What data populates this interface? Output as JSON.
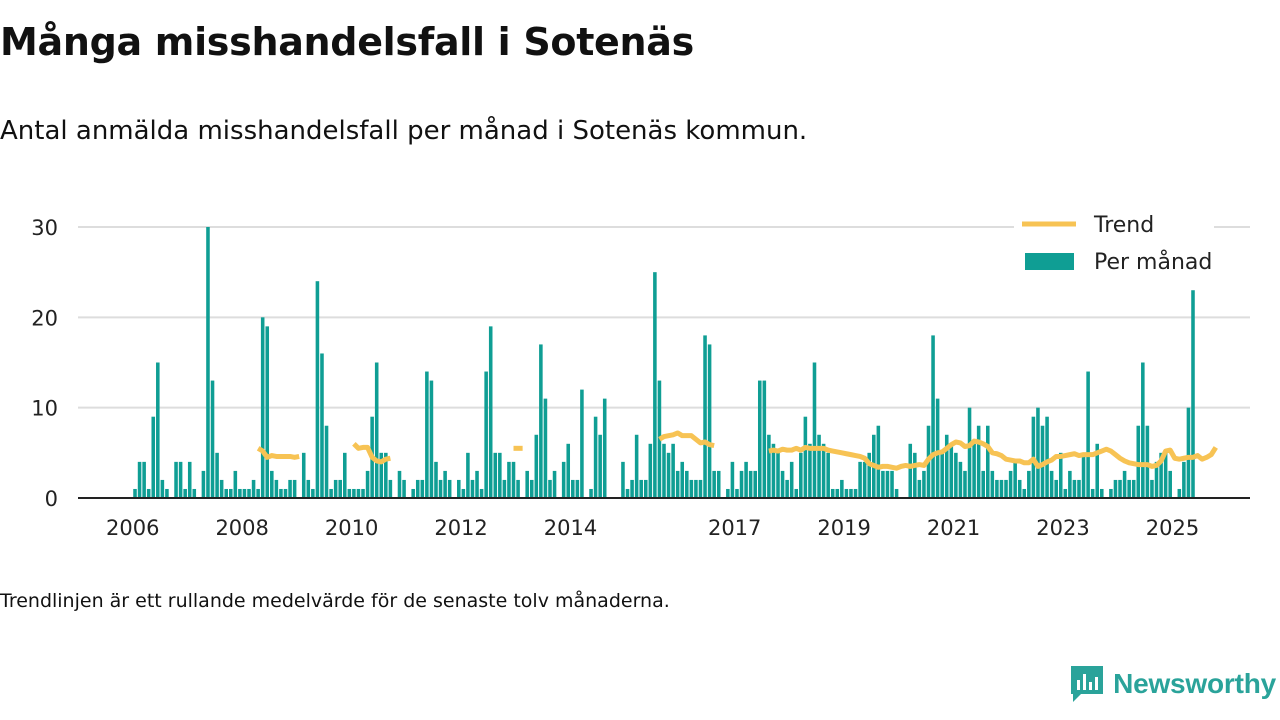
{
  "title": "Många misshandelsfall i Sotenäs",
  "subtitle": "Antal anmälda misshandelsfall per månad i Sotenäs kommun.",
  "footnote": "Trendlinjen är ett rullande medelvärde för de senaste tolv månaderna.",
  "brand": {
    "name": "Newsworthy",
    "logo_icon": "newsworthy-logo-icon"
  },
  "colors": {
    "bar": "#0f9e94",
    "trend": "#f7c354",
    "grid": "#dddddd",
    "axis": "#222222",
    "brand": "#2aa39a"
  },
  "chart_data": {
    "type": "bar",
    "title": "Många misshandelsfall i Sotenäs",
    "x_type": "time",
    "x_range": [
      "2005-01",
      "2026-06"
    ],
    "ylim": [
      0,
      30
    ],
    "yticks": [
      0,
      10,
      20,
      30
    ],
    "xticks": [
      {
        "label": "2006",
        "date": "2006-01"
      },
      {
        "label": "2008",
        "date": "2008-01"
      },
      {
        "label": "2010",
        "date": "2010-01"
      },
      {
        "label": "2012",
        "date": "2012-01"
      },
      {
        "label": "2014",
        "date": "2014-01"
      },
      {
        "label": "2017",
        "date": "2017-01"
      },
      {
        "label": "2019",
        "date": "2019-01"
      },
      {
        "label": "2021",
        "date": "2021-01"
      },
      {
        "label": "2023",
        "date": "2023-01"
      },
      {
        "label": "2025",
        "date": "2025-01"
      }
    ],
    "legend": {
      "position": "top-right",
      "entries": [
        {
          "label": "Trend",
          "kind": "line"
        },
        {
          "label": "Per månad",
          "kind": "bar"
        }
      ]
    },
    "series": [
      {
        "name": "Per månad",
        "kind": "bar",
        "start": "2006-01",
        "values": [
          1,
          4,
          4,
          1,
          9,
          15,
          2,
          1,
          0,
          4,
          4,
          1,
          4,
          1,
          0,
          3,
          30,
          13,
          5,
          2,
          1,
          1,
          3,
          1,
          1,
          1,
          2,
          1,
          20,
          19,
          3,
          2,
          1,
          1,
          2,
          2,
          0,
          5,
          2,
          1,
          24,
          16,
          8,
          1,
          2,
          2,
          5,
          1,
          1,
          1,
          1,
          3,
          9,
          15,
          5,
          5,
          2,
          0,
          3,
          2,
          0,
          1,
          2,
          2,
          14,
          13,
          4,
          2,
          3,
          2,
          0,
          2,
          1,
          5,
          2,
          3,
          1,
          14,
          19,
          5,
          5,
          2,
          4,
          4,
          2,
          0,
          3,
          2,
          7,
          17,
          11,
          2,
          3,
          0,
          4,
          6,
          2,
          2,
          12,
          0,
          1,
          9,
          7,
          11,
          0,
          0,
          0,
          4,
          1,
          2,
          7,
          2,
          2,
          6,
          25,
          13,
          6,
          5,
          6,
          3,
          4,
          3,
          2,
          2,
          2,
          18,
          17,
          3,
          3,
          0,
          1,
          4,
          1,
          3,
          4,
          3,
          3,
          13,
          13,
          7,
          6,
          5,
          3,
          2,
          4,
          1,
          5,
          9,
          6,
          15,
          7,
          6,
          5,
          1,
          1,
          2,
          1,
          1,
          1,
          4,
          4,
          5,
          7,
          8,
          3,
          3,
          3,
          1,
          0,
          0,
          6,
          5,
          2,
          3,
          8,
          18,
          11,
          5,
          7,
          6,
          5,
          4,
          3,
          10,
          6,
          8,
          3,
          8,
          3,
          2,
          2,
          2,
          3,
          4,
          2,
          1,
          3,
          9,
          10,
          8,
          9,
          3,
          2,
          5,
          1,
          3,
          2,
          2,
          5,
          14,
          1,
          6,
          1,
          0,
          1,
          2,
          2,
          3,
          2,
          2,
          8,
          15,
          8,
          2,
          4,
          5,
          5,
          3,
          0,
          1,
          4,
          10,
          23
        ]
      },
      {
        "name": "Trend",
        "kind": "line",
        "segments": [
          {
            "start": "2008-04",
            "values": [
              5.5,
              5.2,
              4.5,
              4.7,
              4.6,
              4.6,
              4.6,
              4.6,
              4.5,
              4.6
            ]
          },
          {
            "start": "2010-01",
            "values": [
              6.0,
              5.5,
              5.6,
              5.6,
              4.5,
              4.1,
              4.0,
              4.3,
              4.4
            ]
          },
          {
            "start": "2012-12",
            "values": [
              5.5,
              5.5,
              5.5
            ]
          },
          {
            "start": "2015-08",
            "values": [
              6.5,
              6.8,
              6.9,
              7.0,
              7.2,
              6.9,
              6.9,
              6.9,
              6.5,
              6.1,
              6.2,
              5.9,
              5.8
            ]
          },
          {
            "start": "2017-08",
            "values": [
              5.2,
              5.3,
              5.2,
              5.4,
              5.3,
              5.3,
              5.5,
              5.3,
              5.6,
              5.5,
              5.5,
              5.5,
              5.5,
              5.3,
              5.2,
              5.1,
              5.0,
              4.9,
              4.8,
              4.7,
              4.6,
              4.4,
              3.8,
              3.6,
              3.4,
              3.5,
              3.5,
              3.4,
              3.3,
              3.5,
              3.6,
              3.5,
              3.6,
              3.7,
              3.6,
              4.3,
              4.8,
              5.0,
              5.1,
              5.5,
              5.9,
              6.2,
              6.1,
              5.7,
              5.8,
              6.3,
              6.2,
              6.0,
              5.7,
              5.0,
              4.9,
              4.7,
              4.3,
              4.2,
              4.1,
              4.1,
              3.9,
              3.9,
              4.3,
              3.5,
              3.7,
              4.0,
              4.2,
              4.6,
              4.6,
              4.7,
              4.8,
              4.9,
              4.7,
              4.8,
              4.8,
              4.8,
              5.0,
              5.2,
              5.4,
              5.2,
              4.8,
              4.4,
              4.1,
              3.9,
              3.8,
              3.7,
              3.7,
              3.7,
              3.5,
              3.6,
              4.1,
              5.2,
              5.3,
              4.4,
              4.3,
              4.4,
              4.5,
              4.5,
              4.7,
              4.3,
              4.5,
              4.8,
              5.6
            ]
          }
        ]
      }
    ]
  }
}
